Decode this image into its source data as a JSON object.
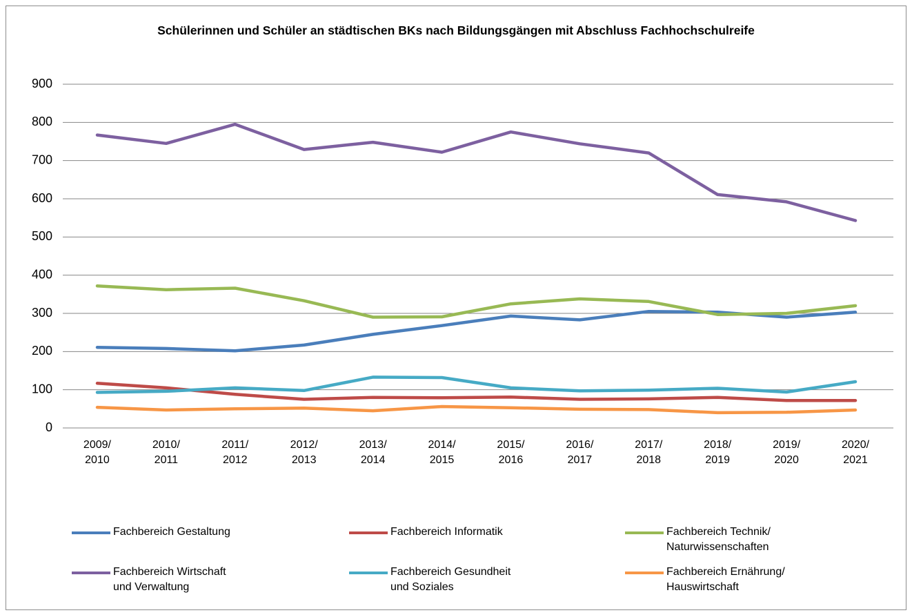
{
  "chart_data": {
    "type": "line",
    "title": "Schülerinnen und Schüler an städtischen BKs nach Bildungsgängen mit Abschluss Fachhochschulreife",
    "categories": [
      "2009/2010",
      "2010/2011",
      "2011/2012",
      "2012/2013",
      "2013/2014",
      "2014/2015",
      "2015/2016",
      "2016/2017",
      "2017/2018",
      "2018/2019",
      "2019/2020",
      "2020/2021"
    ],
    "series": [
      {
        "name": "Fachbereich Gestaltung",
        "color": "#4a7ebb",
        "values": [
          211,
          208,
          202,
          217,
          245,
          268,
          293,
          283,
          305,
          303,
          290,
          303
        ]
      },
      {
        "name": "Fachbereich Informatik",
        "color": "#be4b48",
        "values": [
          117,
          105,
          88,
          75,
          80,
          79,
          81,
          75,
          76,
          80,
          72,
          72
        ]
      },
      {
        "name": "Fachbereich Technik/ Naturwissenschaften",
        "color": "#98b954",
        "values": [
          372,
          362,
          366,
          333,
          290,
          291,
          325,
          338,
          331,
          297,
          300,
          320
        ]
      },
      {
        "name": "Fachbereich Wirtschaft und Verwaltung",
        "color": "#7d60a0",
        "values": [
          767,
          745,
          795,
          729,
          748,
          722,
          775,
          744,
          720,
          611,
          592,
          543
        ]
      },
      {
        "name": "Fachbereich Gesundheit und Soziales",
        "color": "#46aac5",
        "values": [
          93,
          96,
          105,
          98,
          133,
          132,
          105,
          97,
          99,
          104,
          94,
          121
        ]
      },
      {
        "name": "Fachbereich Ernährung/ Hauswirtschaft",
        "color": "#f79646",
        "values": [
          54,
          47,
          50,
          52,
          45,
          56,
          53,
          49,
          48,
          40,
          41,
          47
        ]
      }
    ],
    "ylim": [
      0,
      900
    ],
    "yticks": [
      0,
      100,
      200,
      300,
      400,
      500,
      600,
      700,
      800,
      900
    ],
    "grid": true,
    "legend": "bottom"
  }
}
